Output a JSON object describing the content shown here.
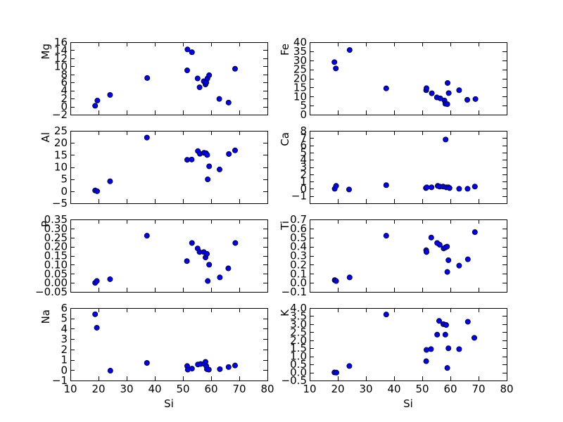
{
  "chart_data": [
    {
      "type": "scatter",
      "ylabel": "Mg",
      "xlabel": "",
      "xlim": [
        10,
        80
      ],
      "ylim": [
        -2,
        16
      ],
      "yticks": [
        -2,
        0,
        2,
        4,
        6,
        8,
        10,
        12,
        14,
        16
      ],
      "xticks": [
        10,
        20,
        30,
        40,
        50,
        60,
        70,
        80
      ],
      "show_x_ticklabels": false,
      "points": [
        [
          18.8,
          0.2
        ],
        [
          19.6,
          1.5
        ],
        [
          24.1,
          2.9
        ],
        [
          37.3,
          7.1
        ],
        [
          51.5,
          9.0
        ],
        [
          51.6,
          14.2
        ],
        [
          53.2,
          13.5
        ],
        [
          55.2,
          7.0
        ],
        [
          55.9,
          4.8
        ],
        [
          57.4,
          6.3
        ],
        [
          58.0,
          5.5
        ],
        [
          58.3,
          6.0
        ],
        [
          58.7,
          7.0
        ],
        [
          59.3,
          7.8
        ],
        [
          62.9,
          1.9
        ],
        [
          66.2,
          1.0
        ],
        [
          68.5,
          9.4
        ]
      ]
    },
    {
      "type": "scatter",
      "ylabel": "Fe",
      "xlabel": "",
      "xlim": [
        10,
        80
      ],
      "ylim": [
        0,
        40
      ],
      "yticks": [
        0,
        5,
        10,
        15,
        20,
        25,
        30,
        35,
        40
      ],
      "xticks": [
        10,
        20,
        30,
        40,
        50,
        60,
        70,
        80
      ],
      "show_x_ticklabels": false,
      "points": [
        [
          18.8,
          29.0
        ],
        [
          19.3,
          25.5
        ],
        [
          24.2,
          35.7
        ],
        [
          37.2,
          14.5
        ],
        [
          51.4,
          13.5
        ],
        [
          51.5,
          14.6
        ],
        [
          53.4,
          11.8
        ],
        [
          55.2,
          9.5
        ],
        [
          56.4,
          9.0
        ],
        [
          57.9,
          7.8
        ],
        [
          58.2,
          6.0
        ],
        [
          58.9,
          5.8
        ],
        [
          59.0,
          17.5
        ],
        [
          59.4,
          11.9
        ],
        [
          63.1,
          13.5
        ],
        [
          66.0,
          8.2
        ],
        [
          68.9,
          8.6
        ]
      ]
    },
    {
      "type": "scatter",
      "ylabel": "Al",
      "xlabel": "",
      "xlim": [
        10,
        80
      ],
      "ylim": [
        -5,
        25
      ],
      "yticks": [
        -5,
        0,
        5,
        10,
        15,
        20,
        25
      ],
      "xticks": [
        10,
        20,
        30,
        40,
        50,
        60,
        70,
        80
      ],
      "show_x_ticklabels": false,
      "points": [
        [
          18.8,
          0.3
        ],
        [
          19.5,
          0.0
        ],
        [
          24.1,
          4.1
        ],
        [
          37.2,
          22.2
        ],
        [
          51.5,
          13.0
        ],
        [
          53.1,
          13.1
        ],
        [
          55.3,
          16.6
        ],
        [
          56.0,
          15.5
        ],
        [
          57.5,
          15.9
        ],
        [
          58.2,
          15.7
        ],
        [
          58.6,
          15.0
        ],
        [
          58.8,
          4.9
        ],
        [
          59.3,
          10.3
        ],
        [
          63.0,
          9.0
        ],
        [
          66.3,
          15.4
        ],
        [
          68.5,
          16.9
        ]
      ]
    },
    {
      "type": "scatter",
      "ylabel": "Ca",
      "xlabel": "",
      "xlim": [
        10,
        80
      ],
      "ylim": [
        -2,
        8
      ],
      "yticks": [
        -1,
        0,
        1,
        2,
        3,
        4,
        5,
        6,
        7,
        8
      ],
      "xticks": [
        10,
        20,
        30,
        40,
        50,
        60,
        70,
        80
      ],
      "show_x_ticklabels": false,
      "points": [
        [
          18.9,
          0.0
        ],
        [
          19.4,
          0.4
        ],
        [
          24.0,
          -0.1
        ],
        [
          37.2,
          0.5
        ],
        [
          51.3,
          0.1
        ],
        [
          51.6,
          0.2
        ],
        [
          53.3,
          0.2
        ],
        [
          55.5,
          0.4
        ],
        [
          56.2,
          0.3
        ],
        [
          57.4,
          0.3
        ],
        [
          58.3,
          6.8
        ],
        [
          58.5,
          0.2
        ],
        [
          59.3,
          0.2
        ],
        [
          59.7,
          0.1
        ],
        [
          63.1,
          0.0
        ],
        [
          66.1,
          0.0
        ],
        [
          68.7,
          0.3
        ]
      ]
    },
    {
      "type": "scatter",
      "ylabel": "P",
      "xlabel": "",
      "xlim": [
        10,
        80
      ],
      "ylim": [
        -0.05,
        0.35
      ],
      "yticks": [
        -0.05,
        0.0,
        0.05,
        0.1,
        0.15,
        0.2,
        0.25,
        0.3,
        0.35
      ],
      "ytick_labels": [
        "−0.05",
        "0.00",
        "0.05",
        "0.10",
        "0.15",
        "0.20",
        "0.25",
        "0.30",
        "0.35"
      ],
      "xticks": [
        10,
        20,
        30,
        40,
        50,
        60,
        70,
        80
      ],
      "show_x_ticklabels": false,
      "points": [
        [
          18.8,
          0.0
        ],
        [
          19.4,
          0.01
        ],
        [
          24.1,
          0.02
        ],
        [
          37.2,
          0.26
        ],
        [
          51.4,
          0.12
        ],
        [
          53.2,
          0.22
        ],
        [
          55.2,
          0.19
        ],
        [
          55.9,
          0.17
        ],
        [
          57.4,
          0.17
        ],
        [
          58.0,
          0.14
        ],
        [
          58.5,
          0.16
        ],
        [
          58.8,
          0.01
        ],
        [
          59.3,
          0.1
        ],
        [
          63.1,
          0.03
        ],
        [
          66.1,
          0.08
        ],
        [
          68.6,
          0.22
        ]
      ]
    },
    {
      "type": "scatter",
      "ylabel": "Ti",
      "xlabel": "",
      "xlim": [
        10,
        80
      ],
      "ylim": [
        -0.1,
        0.7
      ],
      "yticks": [
        -0.1,
        0.0,
        0.1,
        0.2,
        0.3,
        0.4,
        0.5,
        0.6,
        0.7
      ],
      "ytick_labels": [
        "−0.1",
        "0.0",
        "0.1",
        "0.2",
        "0.3",
        "0.4",
        "0.5",
        "0.6",
        "0.7"
      ],
      "xticks": [
        10,
        20,
        30,
        40,
        50,
        60,
        70,
        80
      ],
      "show_x_ticklabels": false,
      "points": [
        [
          18.9,
          0.03
        ],
        [
          19.4,
          0.02
        ],
        [
          24.2,
          0.06
        ],
        [
          37.2,
          0.52
        ],
        [
          51.4,
          0.36
        ],
        [
          51.5,
          0.34
        ],
        [
          53.2,
          0.5
        ],
        [
          55.3,
          0.44
        ],
        [
          56.2,
          0.42
        ],
        [
          57.6,
          0.38
        ],
        [
          58.2,
          0.39
        ],
        [
          58.8,
          0.4
        ],
        [
          58.9,
          0.12
        ],
        [
          59.3,
          0.25
        ],
        [
          63.1,
          0.19
        ],
        [
          66.2,
          0.26
        ],
        [
          68.7,
          0.56
        ]
      ]
    },
    {
      "type": "scatter",
      "ylabel": "Na",
      "xlabel": "Si",
      "xlim": [
        10,
        80
      ],
      "ylim": [
        -1,
        6
      ],
      "yticks": [
        -1,
        0,
        1,
        2,
        3,
        4,
        5,
        6
      ],
      "ytick_labels": [
        "−1",
        "0",
        "1",
        "2",
        "3",
        "4",
        "5",
        "6"
      ],
      "xticks": [
        10,
        20,
        30,
        40,
        50,
        60,
        70,
        80
      ],
      "show_x_ticklabels": true,
      "points": [
        [
          18.8,
          5.4
        ],
        [
          19.4,
          4.1
        ],
        [
          24.2,
          -0.05
        ],
        [
          37.2,
          0.7
        ],
        [
          51.5,
          0.4
        ],
        [
          51.7,
          0.05
        ],
        [
          53.2,
          0.15
        ],
        [
          55.3,
          0.55
        ],
        [
          56.3,
          0.6
        ],
        [
          57.6,
          0.6
        ],
        [
          58.0,
          0.8
        ],
        [
          58.3,
          0.4
        ],
        [
          58.5,
          0.1
        ],
        [
          59.2,
          0.05
        ],
        [
          63.1,
          0.1
        ],
        [
          66.2,
          0.3
        ],
        [
          68.5,
          0.45
        ]
      ]
    },
    {
      "type": "scatter",
      "ylabel": "K",
      "xlabel": "Si",
      "xlim": [
        10,
        80
      ],
      "ylim": [
        -0.5,
        4.0
      ],
      "yticks": [
        -0.5,
        0.0,
        0.5,
        1.0,
        1.5,
        2.0,
        2.5,
        3.0,
        3.5,
        4.0
      ],
      "ytick_labels": [
        "−0.5",
        "0.0",
        "0.5",
        "1.0",
        "1.5",
        "2.0",
        "2.5",
        "3.0",
        "3.5",
        "4.0"
      ],
      "xticks": [
        10,
        20,
        30,
        40,
        50,
        60,
        70,
        80
      ],
      "show_x_ticklabels": true,
      "points": [
        [
          18.8,
          0.0
        ],
        [
          19.5,
          -0.01
        ],
        [
          24.1,
          0.4
        ],
        [
          37.2,
          3.6
        ],
        [
          51.4,
          0.7
        ],
        [
          51.5,
          1.4
        ],
        [
          53.1,
          1.45
        ],
        [
          55.3,
          2.35
        ],
        [
          56.0,
          3.2
        ],
        [
          57.5,
          3.0
        ],
        [
          58.2,
          2.35
        ],
        [
          58.5,
          2.95
        ],
        [
          58.9,
          0.28
        ],
        [
          59.3,
          1.5
        ],
        [
          63.1,
          1.45
        ],
        [
          66.2,
          3.15
        ],
        [
          68.5,
          2.15
        ]
      ]
    }
  ],
  "style": {
    "marker_fill": "#0000ff",
    "marker_edge": "#000000",
    "axes_edge": "#000000",
    "background": "#ffffff"
  }
}
